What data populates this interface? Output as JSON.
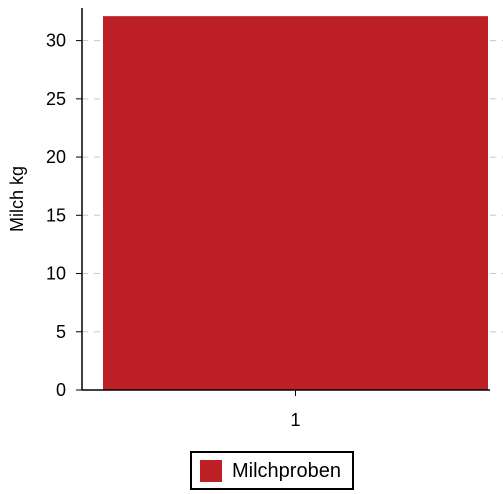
{
  "chart_data": {
    "type": "bar",
    "categories": [
      "1"
    ],
    "series": [
      {
        "name": "Milchproben",
        "values": [
          32.1
        ],
        "color": "#bd2026"
      }
    ],
    "xlabel": "",
    "ylabel": "Milch kg",
    "ylim": [
      0,
      32.8
    ],
    "yticks": [
      0,
      5,
      10,
      15,
      20,
      25,
      30
    ],
    "ytick_labels": [
      "0",
      "5",
      "10",
      "15",
      "20",
      "25",
      "30"
    ],
    "grid": "horizontal dashed",
    "legend": "bottom-center"
  }
}
